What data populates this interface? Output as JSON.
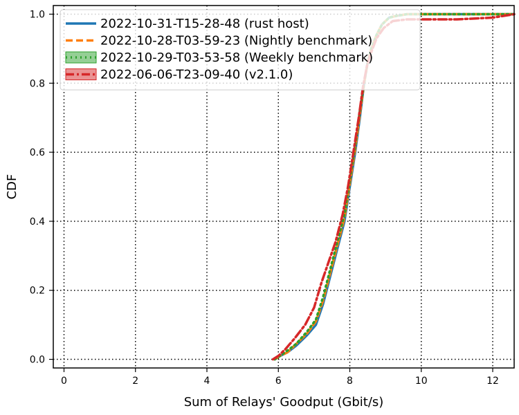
{
  "chart_data": {
    "type": "line",
    "xlabel": "Sum of Relays' Goodput (Gbit/s)",
    "ylabel": "CDF",
    "xlim": [
      -0.3,
      12.6
    ],
    "ylim": [
      -0.025,
      1.025
    ],
    "xticks": [
      0,
      2,
      4,
      6,
      8,
      10,
      12
    ],
    "yticks": [
      0.0,
      0.2,
      0.4,
      0.6,
      0.8,
      1.0
    ],
    "xtick_labels": [
      "0",
      "2",
      "4",
      "6",
      "8",
      "10",
      "12"
    ],
    "ytick_labels": [
      "0.0",
      "0.2",
      "0.4",
      "0.6",
      "0.8",
      "1.0"
    ],
    "grid": true,
    "grid_style": "dotted",
    "legend_position": "upper-left",
    "series": [
      {
        "name": "2022-10-31-T15-28-48 (rust host)",
        "color": "#1f77b4",
        "style": "solid",
        "x": [
          5.9,
          6.05,
          6.25,
          6.5,
          6.8,
          7.05,
          7.25,
          7.45,
          7.65,
          7.85,
          8.0,
          8.15,
          8.28,
          8.4,
          8.5,
          8.6,
          8.75,
          8.9,
          9.1,
          9.3,
          9.6,
          10.0,
          11.0,
          12.6
        ],
        "y": [
          0.0,
          0.01,
          0.02,
          0.04,
          0.07,
          0.1,
          0.16,
          0.24,
          0.32,
          0.4,
          0.5,
          0.6,
          0.7,
          0.8,
          0.86,
          0.9,
          0.94,
          0.97,
          0.99,
          0.995,
          1.0,
          1.0,
          1.0,
          1.0
        ]
      },
      {
        "name": "2022-10-28-T03-59-23 (Nightly benchmark)",
        "color": "#ff7f0e",
        "style": "dashed",
        "x": [
          5.9,
          6.05,
          6.25,
          6.5,
          6.8,
          7.05,
          7.25,
          7.45,
          7.65,
          7.85,
          8.0,
          8.15,
          8.28,
          8.4,
          8.5,
          8.6,
          8.75,
          8.9,
          9.1,
          9.3,
          9.6,
          10.0,
          11.0,
          12.6
        ],
        "y": [
          0.0,
          0.01,
          0.02,
          0.045,
          0.075,
          0.11,
          0.17,
          0.25,
          0.33,
          0.41,
          0.51,
          0.61,
          0.71,
          0.8,
          0.86,
          0.9,
          0.94,
          0.97,
          0.99,
          0.995,
          1.0,
          1.0,
          1.0,
          1.0
        ]
      },
      {
        "name": "2022-10-29-T03-53-58 (Weekly benchmark)",
        "color": "#2ca02c",
        "style": "dotted",
        "x": [
          5.9,
          6.05,
          6.25,
          6.5,
          6.8,
          7.05,
          7.25,
          7.45,
          7.65,
          7.85,
          8.0,
          8.15,
          8.28,
          8.4,
          8.5,
          8.6,
          8.75,
          8.9,
          9.1,
          9.3,
          9.6,
          10.0,
          11.0,
          12.6
        ],
        "y": [
          0.0,
          0.01,
          0.025,
          0.045,
          0.08,
          0.115,
          0.18,
          0.26,
          0.34,
          0.42,
          0.52,
          0.62,
          0.72,
          0.8,
          0.86,
          0.9,
          0.94,
          0.97,
          0.99,
          0.995,
          1.0,
          1.0,
          1.0,
          1.0
        ]
      },
      {
        "name": "2022-06-06-T23-09-40 (v2.1.0)",
        "color": "#d62728",
        "style": "dashdot",
        "x": [
          5.85,
          6.0,
          6.2,
          6.45,
          6.75,
          7.0,
          7.2,
          7.4,
          7.6,
          7.8,
          7.95,
          8.1,
          8.25,
          8.37,
          8.48,
          8.6,
          8.75,
          8.95,
          9.2,
          9.6,
          10.0,
          11.0,
          12.0,
          12.6
        ],
        "y": [
          0.0,
          0.01,
          0.03,
          0.06,
          0.1,
          0.15,
          0.22,
          0.28,
          0.34,
          0.42,
          0.5,
          0.6,
          0.7,
          0.79,
          0.85,
          0.89,
          0.93,
          0.96,
          0.98,
          0.985,
          0.985,
          0.985,
          0.99,
          1.0
        ]
      }
    ]
  }
}
